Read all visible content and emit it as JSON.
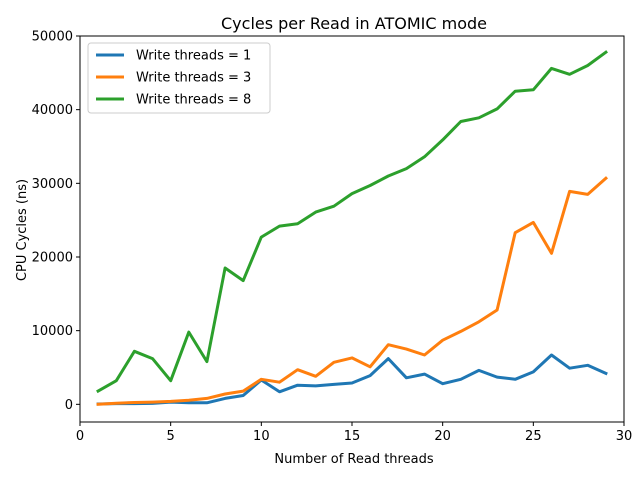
{
  "chart_data": {
    "type": "line",
    "title": "Cycles per Read in ATOMIC mode",
    "xlabel": "Number of Read threads",
    "ylabel": "CPU Cycles (ns)",
    "xlim": [
      0,
      30
    ],
    "ylim": [
      -2400,
      50000
    ],
    "xticks": [
      0,
      5,
      10,
      15,
      20,
      25,
      30
    ],
    "yticks": [
      0,
      10000,
      20000,
      30000,
      40000,
      50000
    ],
    "grid": false,
    "legend_position": "top-left",
    "x": [
      1,
      2,
      3,
      4,
      5,
      6,
      7,
      8,
      9,
      10,
      11,
      12,
      13,
      14,
      15,
      16,
      17,
      18,
      19,
      20,
      21,
      22,
      23,
      24,
      25,
      26,
      27,
      28,
      29
    ],
    "series": [
      {
        "name": "Write threads = 1",
        "color": "#1f77b4",
        "values": [
          50,
          100,
          100,
          120,
          300,
          200,
          200,
          800,
          1200,
          3300,
          1700,
          2600,
          2500,
          2700,
          2900,
          3900,
          6200,
          3600,
          4100,
          2800,
          3400,
          4600,
          3700,
          3400,
          4400,
          6700,
          4900,
          5300,
          4200
        ]
      },
      {
        "name": "Write threads = 3",
        "color": "#ff7f0e",
        "values": [
          0,
          150,
          250,
          300,
          400,
          550,
          800,
          1400,
          1800,
          3400,
          3000,
          4700,
          3800,
          5700,
          6300,
          5100,
          8100,
          7500,
          6700,
          8700,
          9900,
          11200,
          12800,
          23300,
          24700,
          20500,
          28900,
          28500,
          30700
        ]
      },
      {
        "name": "Write threads = 8",
        "color": "#2ca02c",
        "values": [
          1800,
          3200,
          7200,
          6200,
          3200,
          9800,
          5800,
          18500,
          16800,
          22700,
          24200,
          24500,
          26100,
          26900,
          28600,
          29700,
          31000,
          32000,
          33600,
          35900,
          38400,
          38900,
          40100,
          42500,
          42700,
          45600,
          44800,
          46000,
          47800
        ]
      }
    ]
  }
}
